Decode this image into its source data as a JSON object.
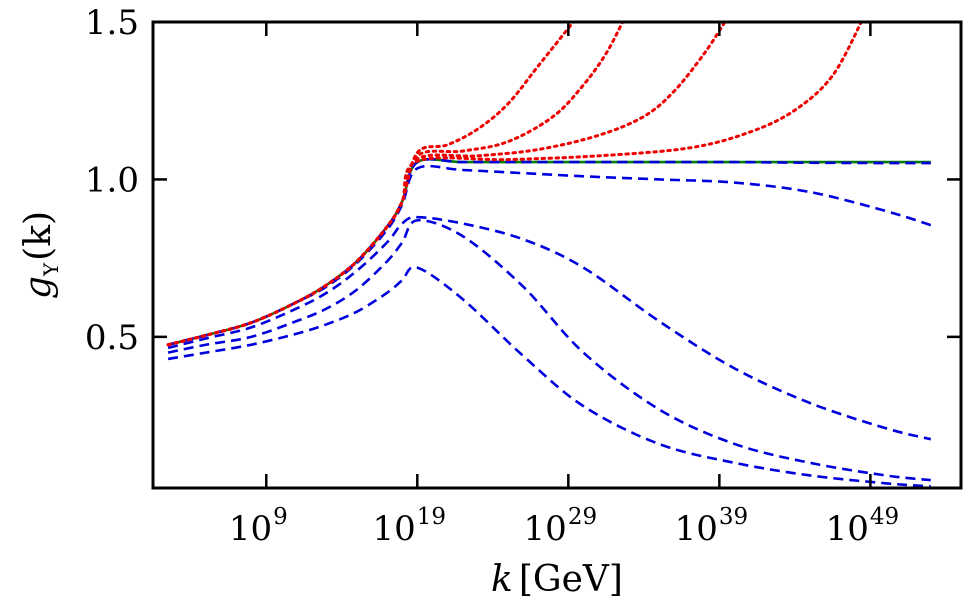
{
  "chart_data": {
    "type": "line",
    "title": "",
    "xscale": "log10",
    "xlim_exp": [
      1.5,
      55
    ],
    "ylim": [
      0.02,
      1.5
    ],
    "xlabel": {
      "var": "k",
      "unit": "[GeV]"
    },
    "ylabel": {
      "var": "g",
      "sub": "Y",
      "arg": "(k)"
    },
    "xticks": [
      {
        "base": "10",
        "exp": "9",
        "at_exp": 9
      },
      {
        "base": "10",
        "exp": "19",
        "at_exp": 19
      },
      {
        "base": "10",
        "exp": "29",
        "at_exp": 29
      },
      {
        "base": "10",
        "exp": "39",
        "at_exp": 39
      },
      {
        "base": "10",
        "exp": "49",
        "at_exp": 49
      }
    ],
    "yticks": [
      {
        "label": "0.5",
        "value": 0.5
      },
      {
        "label": "1.0",
        "value": 1.0
      },
      {
        "label": "1.5",
        "value": 1.5
      }
    ],
    "grid": false,
    "legend": "none",
    "colors": {
      "green": "#008000",
      "blue": "#0000dd",
      "red": "#ee0000"
    },
    "series": [
      {
        "name": "green-solid",
        "style": "solid",
        "color": "green",
        "x_exp": [
          2.5,
          5,
          8,
          11,
          13,
          15,
          17,
          18,
          19,
          22,
          26,
          30,
          35,
          40,
          45,
          50,
          53
        ],
        "y": [
          0.475,
          0.505,
          0.545,
          0.61,
          0.665,
          0.74,
          0.85,
          0.93,
          1.055,
          1.055,
          1.055,
          1.055,
          1.055,
          1.055,
          1.055,
          1.055,
          1.055
        ]
      },
      {
        "name": "blue-dashed-1",
        "style": "dashed",
        "color": "blue",
        "x_exp": [
          2.5,
          5,
          8,
          11,
          13,
          15,
          17,
          18,
          19,
          22,
          26,
          30,
          35,
          40,
          45,
          50,
          53
        ],
        "y": [
          0.475,
          0.505,
          0.545,
          0.61,
          0.665,
          0.74,
          0.85,
          0.93,
          1.055,
          1.055,
          1.055,
          1.055,
          1.055,
          1.055,
          1.053,
          1.052,
          1.052
        ]
      },
      {
        "name": "blue-dashed-2",
        "style": "dashed",
        "color": "blue",
        "x_exp": [
          2.5,
          5,
          8,
          11,
          13,
          15,
          17,
          18,
          19,
          22,
          26,
          30,
          35,
          40,
          45,
          50,
          53
        ],
        "y": [
          0.475,
          0.505,
          0.545,
          0.61,
          0.66,
          0.735,
          0.84,
          0.92,
          1.035,
          1.03,
          1.02,
          1.01,
          1.0,
          0.99,
          0.96,
          0.9,
          0.855
        ]
      },
      {
        "name": "blue-dashed-3",
        "style": "dashed",
        "color": "blue",
        "x_exp": [
          2.5,
          5,
          8,
          11,
          13,
          15,
          17,
          18,
          19,
          22,
          26,
          30,
          35,
          40,
          45,
          50,
          53
        ],
        "y": [
          0.465,
          0.495,
          0.53,
          0.59,
          0.64,
          0.71,
          0.8,
          0.86,
          0.88,
          0.86,
          0.81,
          0.72,
          0.55,
          0.4,
          0.29,
          0.21,
          0.175
        ]
      },
      {
        "name": "blue-dashed-4",
        "style": "dashed",
        "color": "blue",
        "x_exp": [
          2.5,
          5,
          8,
          11,
          13,
          15,
          17,
          18,
          19,
          22,
          26,
          30,
          35,
          40,
          45,
          50,
          53
        ],
        "y": [
          0.45,
          0.475,
          0.5,
          0.55,
          0.59,
          0.65,
          0.74,
          0.8,
          0.87,
          0.82,
          0.66,
          0.45,
          0.27,
          0.16,
          0.1,
          0.06,
          0.045
        ]
      },
      {
        "name": "blue-dashed-5",
        "style": "dashed",
        "color": "blue",
        "x_exp": [
          2.5,
          5,
          8,
          11,
          13,
          15,
          17,
          18,
          19,
          22,
          26,
          30,
          35,
          40,
          45,
          50,
          53
        ],
        "y": [
          0.43,
          0.45,
          0.475,
          0.51,
          0.54,
          0.58,
          0.64,
          0.68,
          0.72,
          0.62,
          0.44,
          0.28,
          0.16,
          0.1,
          0.06,
          0.035,
          0.025
        ]
      },
      {
        "name": "red-dotted-1",
        "style": "dotted",
        "color": "red",
        "x_exp": [
          2.5,
          5,
          8,
          11,
          13,
          15,
          17,
          18,
          19,
          21,
          23,
          25,
          27,
          28.5,
          29.5
        ],
        "y": [
          0.475,
          0.505,
          0.545,
          0.61,
          0.665,
          0.74,
          0.85,
          0.93,
          1.085,
          1.11,
          1.16,
          1.24,
          1.36,
          1.45,
          1.51
        ]
      },
      {
        "name": "red-dotted-2",
        "style": "dotted",
        "color": "red",
        "x_exp": [
          2.5,
          5,
          8,
          11,
          13,
          15,
          17,
          18,
          19,
          22,
          25,
          28,
          30,
          31.5,
          32.7
        ],
        "y": [
          0.475,
          0.505,
          0.545,
          0.61,
          0.665,
          0.74,
          0.85,
          0.93,
          1.075,
          1.09,
          1.12,
          1.2,
          1.3,
          1.4,
          1.51
        ]
      },
      {
        "name": "red-dotted-3",
        "style": "dotted",
        "color": "red",
        "x_exp": [
          2.5,
          5,
          8,
          11,
          13,
          15,
          17,
          18,
          19,
          23,
          27,
          31,
          34,
          36,
          38,
          39.5
        ],
        "y": [
          0.475,
          0.505,
          0.545,
          0.61,
          0.665,
          0.74,
          0.85,
          0.93,
          1.065,
          1.075,
          1.095,
          1.14,
          1.2,
          1.28,
          1.4,
          1.51
        ]
      },
      {
        "name": "red-dotted-4",
        "style": "dotted",
        "color": "red",
        "x_exp": [
          2.5,
          5,
          8,
          11,
          13,
          15,
          17,
          18,
          19,
          25,
          31,
          37,
          41,
          44,
          46.5,
          48.5
        ],
        "y": [
          0.475,
          0.505,
          0.545,
          0.61,
          0.665,
          0.74,
          0.85,
          0.93,
          1.058,
          1.063,
          1.075,
          1.1,
          1.15,
          1.22,
          1.33,
          1.51
        ]
      }
    ]
  }
}
